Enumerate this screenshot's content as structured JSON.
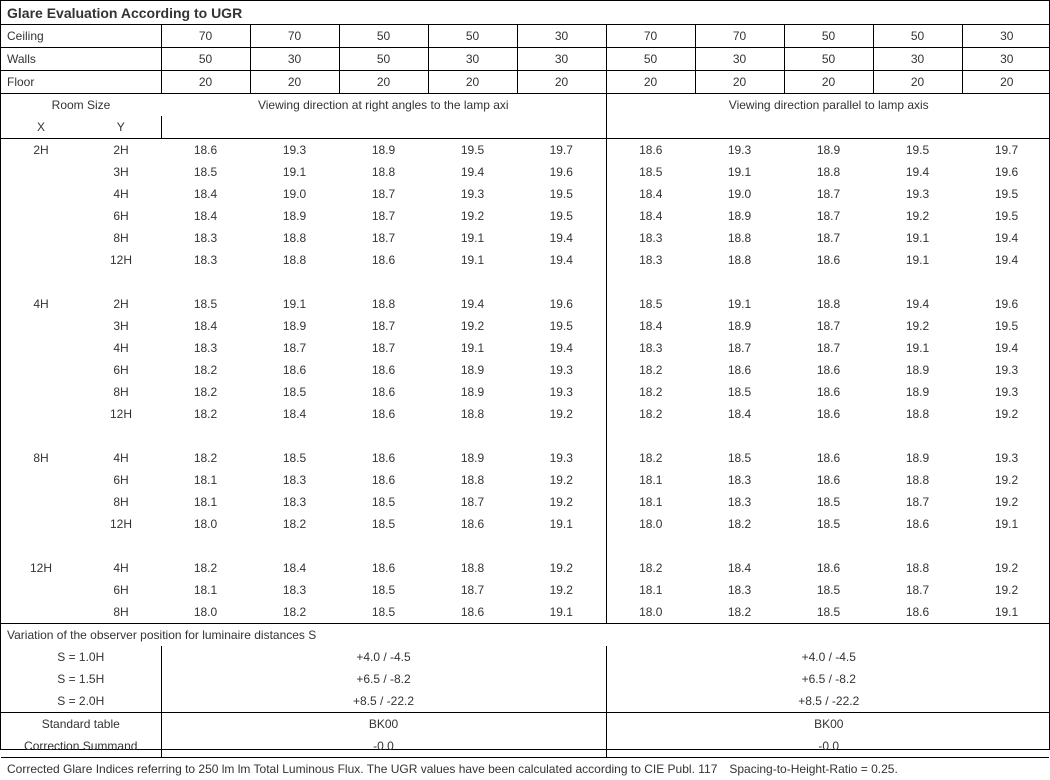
{
  "title": "Glare Evaluation According to UGR",
  "header": {
    "labels": {
      "ceiling": "Ceiling",
      "walls": "Walls",
      "floor": "Floor"
    },
    "ceiling": [
      "70",
      "70",
      "50",
      "50",
      "30",
      "70",
      "70",
      "50",
      "50",
      "30"
    ],
    "walls": [
      "50",
      "30",
      "50",
      "30",
      "30",
      "50",
      "30",
      "50",
      "30",
      "30"
    ],
    "floor": [
      "20",
      "20",
      "20",
      "20",
      "20",
      "20",
      "20",
      "20",
      "20",
      "20"
    ]
  },
  "room_size": {
    "label": "Room Size",
    "x": "X",
    "y": "Y"
  },
  "group_headers": {
    "left": "Viewing direction at right angles to the lamp axi",
    "right": "Viewing direction parallel to lamp axis"
  },
  "groups": [
    {
      "x": "2H",
      "rows": [
        {
          "y": "2H",
          "a": [
            "18.6",
            "19.3",
            "18.9",
            "19.5",
            "19.7"
          ],
          "b": [
            "18.6",
            "19.3",
            "18.9",
            "19.5",
            "19.7"
          ]
        },
        {
          "y": "3H",
          "a": [
            "18.5",
            "19.1",
            "18.8",
            "19.4",
            "19.6"
          ],
          "b": [
            "18.5",
            "19.1",
            "18.8",
            "19.4",
            "19.6"
          ]
        },
        {
          "y": "4H",
          "a": [
            "18.4",
            "19.0",
            "18.7",
            "19.3",
            "19.5"
          ],
          "b": [
            "18.4",
            "19.0",
            "18.7",
            "19.3",
            "19.5"
          ]
        },
        {
          "y": "6H",
          "a": [
            "18.4",
            "18.9",
            "18.7",
            "19.2",
            "19.5"
          ],
          "b": [
            "18.4",
            "18.9",
            "18.7",
            "19.2",
            "19.5"
          ]
        },
        {
          "y": "8H",
          "a": [
            "18.3",
            "18.8",
            "18.7",
            "19.1",
            "19.4"
          ],
          "b": [
            "18.3",
            "18.8",
            "18.7",
            "19.1",
            "19.4"
          ]
        },
        {
          "y": "12H",
          "a": [
            "18.3",
            "18.8",
            "18.6",
            "19.1",
            "19.4"
          ],
          "b": [
            "18.3",
            "18.8",
            "18.6",
            "19.1",
            "19.4"
          ]
        }
      ]
    },
    {
      "x": "4H",
      "rows": [
        {
          "y": "2H",
          "a": [
            "18.5",
            "19.1",
            "18.8",
            "19.4",
            "19.6"
          ],
          "b": [
            "18.5",
            "19.1",
            "18.8",
            "19.4",
            "19.6"
          ]
        },
        {
          "y": "3H",
          "a": [
            "18.4",
            "18.9",
            "18.7",
            "19.2",
            "19.5"
          ],
          "b": [
            "18.4",
            "18.9",
            "18.7",
            "19.2",
            "19.5"
          ]
        },
        {
          "y": "4H",
          "a": [
            "18.3",
            "18.7",
            "18.7",
            "19.1",
            "19.4"
          ],
          "b": [
            "18.3",
            "18.7",
            "18.7",
            "19.1",
            "19.4"
          ]
        },
        {
          "y": "6H",
          "a": [
            "18.2",
            "18.6",
            "18.6",
            "18.9",
            "19.3"
          ],
          "b": [
            "18.2",
            "18.6",
            "18.6",
            "18.9",
            "19.3"
          ]
        },
        {
          "y": "8H",
          "a": [
            "18.2",
            "18.5",
            "18.6",
            "18.9",
            "19.3"
          ],
          "b": [
            "18.2",
            "18.5",
            "18.6",
            "18.9",
            "19.3"
          ]
        },
        {
          "y": "12H",
          "a": [
            "18.2",
            "18.4",
            "18.6",
            "18.8",
            "19.2"
          ],
          "b": [
            "18.2",
            "18.4",
            "18.6",
            "18.8",
            "19.2"
          ]
        }
      ]
    },
    {
      "x": "8H",
      "rows": [
        {
          "y": "4H",
          "a": [
            "18.2",
            "18.5",
            "18.6",
            "18.9",
            "19.3"
          ],
          "b": [
            "18.2",
            "18.5",
            "18.6",
            "18.9",
            "19.3"
          ]
        },
        {
          "y": "6H",
          "a": [
            "18.1",
            "18.3",
            "18.6",
            "18.8",
            "19.2"
          ],
          "b": [
            "18.1",
            "18.3",
            "18.6",
            "18.8",
            "19.2"
          ]
        },
        {
          "y": "8H",
          "a": [
            "18.1",
            "18.3",
            "18.5",
            "18.7",
            "19.2"
          ],
          "b": [
            "18.1",
            "18.3",
            "18.5",
            "18.7",
            "19.2"
          ]
        },
        {
          "y": "12H",
          "a": [
            "18.0",
            "18.2",
            "18.5",
            "18.6",
            "19.1"
          ],
          "b": [
            "18.0",
            "18.2",
            "18.5",
            "18.6",
            "19.1"
          ]
        }
      ]
    },
    {
      "x": "12H",
      "rows": [
        {
          "y": "4H",
          "a": [
            "18.2",
            "18.4",
            "18.6",
            "18.8",
            "19.2"
          ],
          "b": [
            "18.2",
            "18.4",
            "18.6",
            "18.8",
            "19.2"
          ]
        },
        {
          "y": "6H",
          "a": [
            "18.1",
            "18.3",
            "18.5",
            "18.7",
            "19.2"
          ],
          "b": [
            "18.1",
            "18.3",
            "18.5",
            "18.7",
            "19.2"
          ]
        },
        {
          "y": "8H",
          "a": [
            "18.0",
            "18.2",
            "18.5",
            "18.6",
            "19.1"
          ],
          "b": [
            "18.0",
            "18.2",
            "18.5",
            "18.6",
            "19.1"
          ]
        }
      ]
    }
  ],
  "variation": {
    "title": "Variation of the observer position for luminaire distances S",
    "rows": [
      {
        "label": "S = 1.0H",
        "a": "+4.0 / -4.5",
        "b": "+4.0 / -4.5"
      },
      {
        "label": "S = 1.5H",
        "a": "+6.5 / -8.2",
        "b": "+6.5 / -8.2"
      },
      {
        "label": "S = 2.0H",
        "a": "+8.5 / -22.2",
        "b": "+8.5 / -22.2"
      }
    ]
  },
  "standard": {
    "rows": [
      {
        "label": "Standard table",
        "a": "BK00",
        "b": "BK00"
      },
      {
        "label": "Correction Summand",
        "a": "-0.0",
        "b": "-0.0"
      }
    ]
  },
  "footnote": "Corrected Glare Indices referring to 250 lm lm Total Luminous Flux. The UGR values have been calculated according to CIE Publ. 117 Spacing-to-Height-Ratio = 0.25."
}
